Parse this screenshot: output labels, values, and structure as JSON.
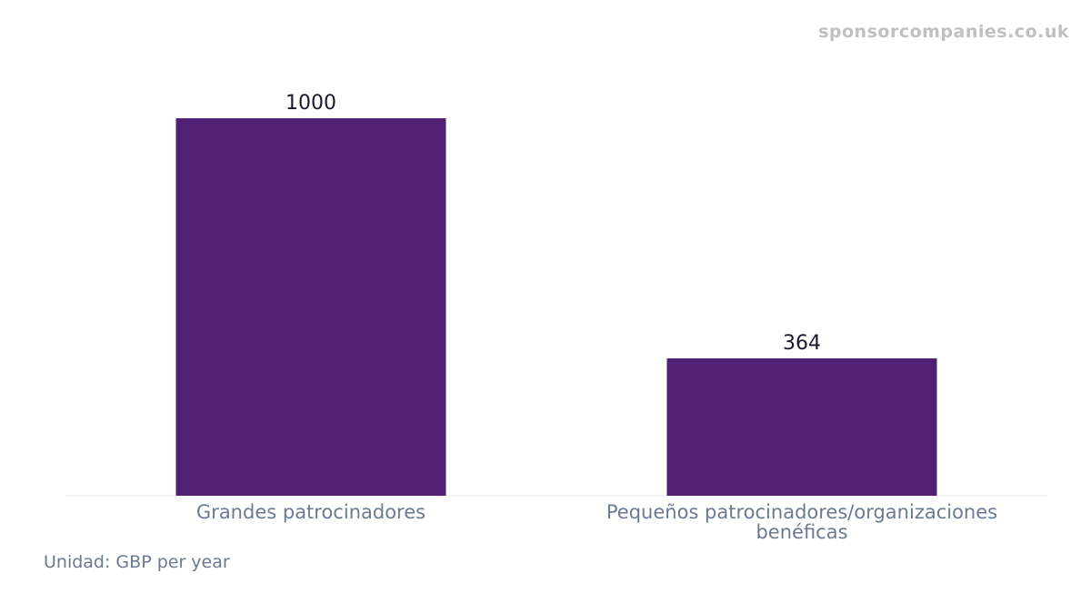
{
  "watermark": "sponsorcompanies.co.uk",
  "unit_label": "Unidad: GBP per year",
  "colors": {
    "bar": "#522074",
    "axis": "#eeeeee"
  },
  "chart_data": {
    "type": "bar",
    "categories": [
      [
        "Grandes patrocinadores"
      ],
      [
        "Pequeños patrocinadores/organizaciones",
        "benéficas"
      ]
    ],
    "values": [
      1000,
      364
    ],
    "value_labels": [
      "1000",
      "364"
    ],
    "title": "",
    "xlabel": "",
    "ylabel": "",
    "ylim": [
      0,
      1050
    ],
    "grid": false,
    "legend": "none"
  }
}
